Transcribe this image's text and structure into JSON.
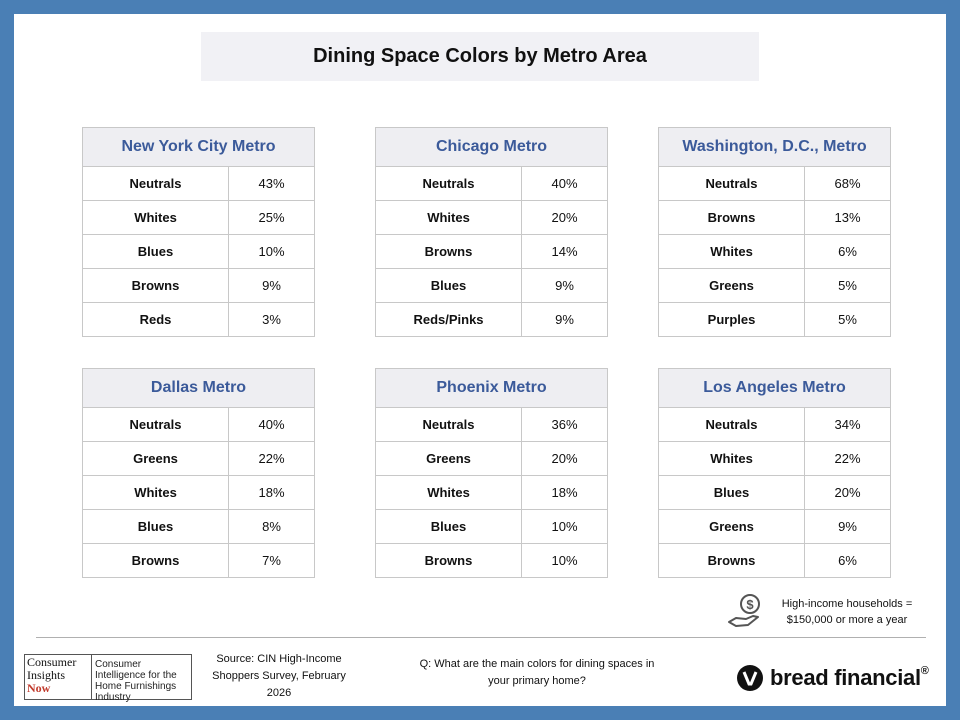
{
  "title": "Dining Space Colors by Metro Area",
  "metros": [
    {
      "name": "New York City Metro",
      "rows": [
        {
          "color": "Neutrals",
          "pct": "43%"
        },
        {
          "color": "Whites",
          "pct": "25%"
        },
        {
          "color": "Blues",
          "pct": "10%"
        },
        {
          "color": "Browns",
          "pct": "9%"
        },
        {
          "color": "Reds",
          "pct": "3%"
        }
      ]
    },
    {
      "name": "Chicago Metro",
      "rows": [
        {
          "color": "Neutrals",
          "pct": "40%"
        },
        {
          "color": "Whites",
          "pct": "20%"
        },
        {
          "color": "Browns",
          "pct": "14%"
        },
        {
          "color": "Blues",
          "pct": "9%"
        },
        {
          "color": "Reds/Pinks",
          "pct": "9%"
        }
      ]
    },
    {
      "name": "Washington, D.C., Metro",
      "rows": [
        {
          "color": "Neutrals",
          "pct": "68%"
        },
        {
          "color": "Browns",
          "pct": "13%"
        },
        {
          "color": "Whites",
          "pct": "6%"
        },
        {
          "color": "Greens",
          "pct": "5%"
        },
        {
          "color": "Purples",
          "pct": "5%"
        }
      ]
    },
    {
      "name": "Dallas Metro",
      "rows": [
        {
          "color": "Neutrals",
          "pct": "40%"
        },
        {
          "color": "Greens",
          "pct": "22%"
        },
        {
          "color": "Whites",
          "pct": "18%"
        },
        {
          "color": "Blues",
          "pct": "8%"
        },
        {
          "color": "Browns",
          "pct": "7%"
        }
      ]
    },
    {
      "name": "Phoenix Metro",
      "rows": [
        {
          "color": "Neutrals",
          "pct": "36%"
        },
        {
          "color": "Greens",
          "pct": "20%"
        },
        {
          "color": "Whites",
          "pct": "18%"
        },
        {
          "color": "Blues",
          "pct": "10%"
        },
        {
          "color": "Browns",
          "pct": "10%"
        }
      ]
    },
    {
      "name": "Los Angeles Metro",
      "rows": [
        {
          "color": "Neutrals",
          "pct": "34%"
        },
        {
          "color": "Whites",
          "pct": "22%"
        },
        {
          "color": "Blues",
          "pct": "20%"
        },
        {
          "color": "Greens",
          "pct": "9%"
        },
        {
          "color": "Browns",
          "pct": "6%"
        }
      ]
    }
  ],
  "note": {
    "line1": "High-income households =",
    "line2": "$150,000 or more a year",
    "icon": "money-hand-icon"
  },
  "logo_cin": {
    "line1": "Consumer",
    "line2": "Insights",
    "line3": "Now",
    "tagline": "Consumer Intelligence for the Home Furnishings Industry"
  },
  "source": "Source: CIN High-Income Shoppers Survey, February 2026",
  "question": "Q: What are the main colors for dining spaces in your primary home?",
  "brand": {
    "name": "bread financial",
    "mark": "®"
  },
  "colors": {
    "frame": "#4a7fb5",
    "header_text": "#3b5a9a",
    "header_bg": "#eeeef2"
  }
}
